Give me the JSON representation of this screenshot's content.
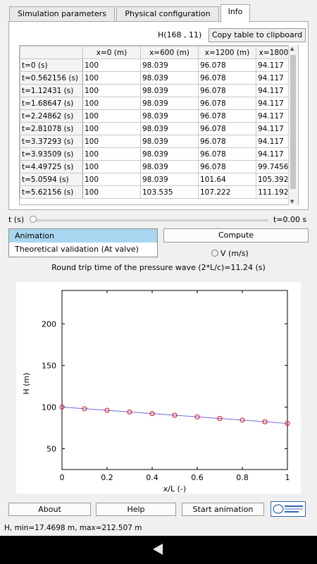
{
  "tabs": [
    "Simulation parameters",
    "Physical configuration",
    "Info"
  ],
  "info": {
    "h_label": "H(168 , 11)",
    "copy_button": "Copy table to clipboard",
    "columns": [
      "",
      "x=0 (m)",
      "x=600 (m)",
      "x=1200 (m)",
      "x=1800"
    ],
    "rows": [
      [
        "t=0 (s)",
        "100",
        "98.039",
        "96.078",
        "94.117"
      ],
      [
        "t=0.562156 (s)",
        "100",
        "98.039",
        "96.078",
        "94.117"
      ],
      [
        "t=1.12431 (s)",
        "100",
        "98.039",
        "96.078",
        "94.117"
      ],
      [
        "t=1.68647 (s)",
        "100",
        "98.039",
        "96.078",
        "94.117"
      ],
      [
        "t=2.24862 (s)",
        "100",
        "98.039",
        "96.078",
        "94.117"
      ],
      [
        "t=2.81078 (s)",
        "100",
        "98.039",
        "96.078",
        "94.117"
      ],
      [
        "t=3.37293 (s)",
        "100",
        "98.039",
        "96.078",
        "94.117"
      ],
      [
        "t=3.93509 (s)",
        "100",
        "98.039",
        "96.078",
        "94.117"
      ],
      [
        "t=4.49725 (s)",
        "100",
        "98.039",
        "96.078",
        "99.7456"
      ],
      [
        "t=5.0594 (s)",
        "100",
        "98.039",
        "101.64",
        "105.392"
      ],
      [
        "t=5.62156 (s)",
        "100",
        "103.535",
        "107.222",
        "111.192"
      ]
    ]
  },
  "slider": {
    "label": "t (s)",
    "value_label": "t=0.00 s",
    "fraction": 0
  },
  "list_items": [
    "Animation",
    "Theoretical validation (At valve)"
  ],
  "compute_button": "Compute",
  "radio_label": "V (m/s)",
  "round_trip": "Round trip time of the pressure wave (2*L/c)=11.24 (s)",
  "chart_data": {
    "type": "line",
    "xlabel": "x/L (-)",
    "ylabel": "H (m)",
    "xlim": [
      0,
      1
    ],
    "ylim": [
      25,
      240
    ],
    "xticks": [
      0,
      0.2,
      0.4,
      0.6,
      0.8,
      1
    ],
    "yticks": [
      50,
      100,
      150,
      200
    ],
    "grid": false,
    "series": [
      {
        "x": [
          0,
          0.1,
          0.2,
          0.3,
          0.4,
          0.5,
          0.6,
          0.7,
          0.8,
          0.9,
          1.0
        ],
        "values": [
          100,
          98.039,
          96.078,
          94.117,
          92.156,
          90.195,
          88.234,
          86.273,
          84.312,
          82.351,
          80.39
        ],
        "line_color": "#6b6bd6",
        "marker_color": "#e00000"
      }
    ]
  },
  "buttons": {
    "about": "About",
    "help": "Help",
    "start": "Start animation"
  },
  "logo_text": "UNIVERSITE SAIDA",
  "status": "H, min=17.4698 m, max=212.507 m",
  "colors": {
    "selected": "#a9d6ef",
    "navbar": "#000000"
  },
  "icons": {
    "back": "back-triangle-icon"
  }
}
